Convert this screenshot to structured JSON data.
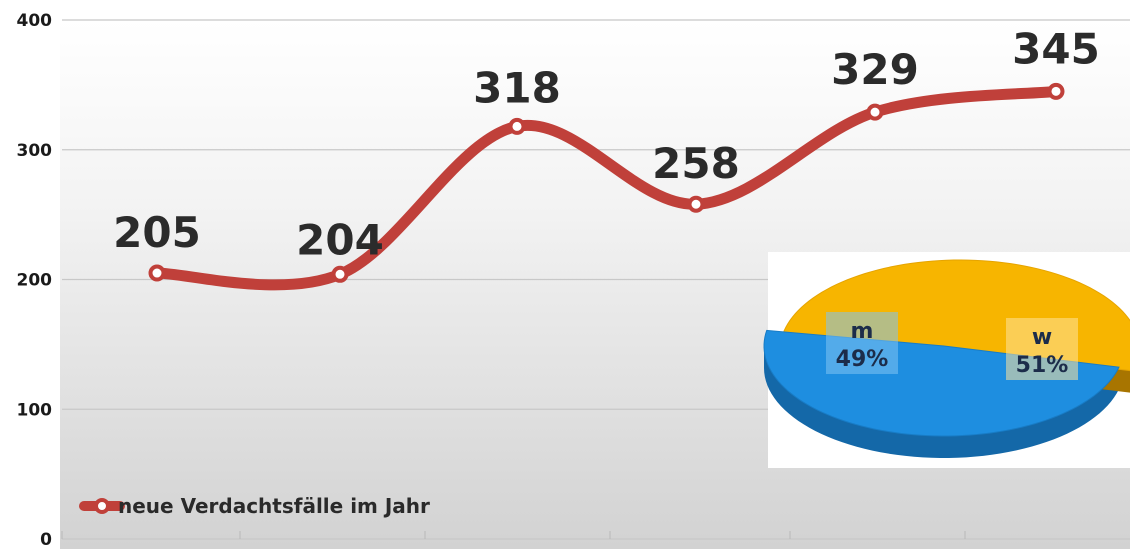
{
  "chart_data": [
    {
      "type": "line",
      "title": "",
      "xlabel": "",
      "ylabel": "",
      "ylim": [
        0,
        400
      ],
      "yticks": [
        0,
        100,
        200,
        300,
        400
      ],
      "grid": true,
      "smooth": true,
      "series": [
        {
          "name": "neue Verdachtsfälle im Jahr",
          "values": [
            205,
            204,
            318,
            258,
            329,
            345
          ],
          "color": "#c0403a"
        }
      ],
      "legend": {
        "position": "bottom-left"
      },
      "colors": {
        "line": "#c0403a",
        "marker_fill": "#ffffff",
        "grid": "#c8c8c8",
        "background_top": "#ffffff",
        "background_bottom": "#d4d4d4"
      }
    },
    {
      "type": "pie",
      "style": "3d",
      "slices": [
        {
          "label": "m",
          "value": 49,
          "pct_label": "49%",
          "color": "#1e8ee0"
        },
        {
          "label": "w",
          "value": 51,
          "pct_label": "51%",
          "color": "#f7b500"
        }
      ]
    }
  ]
}
